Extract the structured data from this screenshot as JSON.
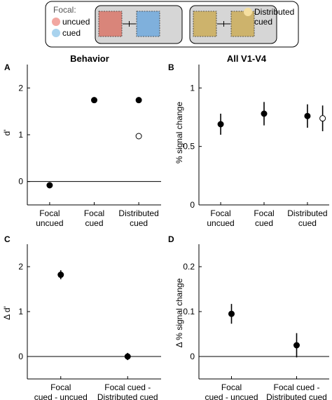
{
  "legend": {
    "focal_label": "Focal:",
    "uncued_label": "uncued",
    "cued_label": "cued",
    "distributed_label_1": "Distributed",
    "distributed_label_2": "cued",
    "colors": {
      "uncued": "#f2a7a1",
      "cued": "#a9d3ee",
      "distributed": "#f5dfa0",
      "box_bg": "#d6d6d6",
      "patch_red": "#d9857a",
      "patch_blue": "#7fb0dc",
      "patch_gold": "#cdb36c"
    }
  },
  "colors": {
    "marker": "#000000",
    "open_marker_fill": "#ffffff",
    "axis": "#000000"
  },
  "chart_data": [
    {
      "panel": "A",
      "title": "Behavior",
      "type": "scatter",
      "ylabel": "d'",
      "ylim": [
        -0.5,
        2.5
      ],
      "yticks": [
        0,
        1,
        2
      ],
      "zero_line": true,
      "categories": [
        [
          "Focal",
          "uncued"
        ],
        [
          "Focal",
          "cued"
        ],
        [
          "Distributed",
          "cued"
        ]
      ],
      "points": [
        {
          "cat": 0,
          "y": -0.08,
          "err": 0.04,
          "style": "filled"
        },
        {
          "cat": 1,
          "y": 1.74,
          "err": 0.05,
          "style": "filled"
        },
        {
          "cat": 2,
          "y": 1.74,
          "err": 0.02,
          "style": "filled"
        },
        {
          "cat": 2,
          "y": 0.97,
          "err": 0.05,
          "style": "open"
        }
      ]
    },
    {
      "panel": "B",
      "title": "All V1-V4",
      "type": "scatter",
      "ylabel": "% signal change",
      "ylim": [
        0,
        1.2
      ],
      "yticks": [
        0,
        0.5,
        1
      ],
      "zero_line": false,
      "categories": [
        [
          "Focal",
          "uncued"
        ],
        [
          "Focal",
          "cued"
        ],
        [
          "Distributed",
          "cued"
        ]
      ],
      "points": [
        {
          "cat": 0,
          "y": 0.69,
          "err": 0.09,
          "style": "filled"
        },
        {
          "cat": 1,
          "y": 0.78,
          "err": 0.1,
          "style": "filled"
        },
        {
          "cat": 2,
          "y": 0.76,
          "err": 0.1,
          "style": "filled"
        },
        {
          "cat": 2.35,
          "y": 0.74,
          "err": 0.11,
          "style": "open"
        }
      ]
    },
    {
      "panel": "C",
      "title": "",
      "type": "scatter",
      "ylabel": "Δ d'",
      "ylim": [
        -0.5,
        2.5
      ],
      "yticks": [
        0,
        1,
        2
      ],
      "zero_line": true,
      "categories": [
        [
          "Focal",
          "cued - uncued"
        ],
        [
          "Focal cued -",
          "Distributed cued"
        ]
      ],
      "points": [
        {
          "cat": 0,
          "y": 1.82,
          "err": 0.1,
          "style": "filled"
        },
        {
          "cat": 1,
          "y": 0.0,
          "err": 0.08,
          "style": "filled"
        }
      ]
    },
    {
      "panel": "D",
      "title": "",
      "type": "scatter",
      "ylabel": "Δ % signal change",
      "ylim": [
        -0.05,
        0.25
      ],
      "yticks": [
        0,
        0.1,
        0.2
      ],
      "zero_line": true,
      "categories": [
        [
          "Focal",
          "cued - uncued"
        ],
        [
          "Focal cued -",
          "Distributed cued"
        ]
      ],
      "points": [
        {
          "cat": 0,
          "y": 0.095,
          "err": 0.022,
          "style": "filled"
        },
        {
          "cat": 1,
          "y": 0.025,
          "err": 0.027,
          "style": "filled"
        }
      ]
    }
  ]
}
